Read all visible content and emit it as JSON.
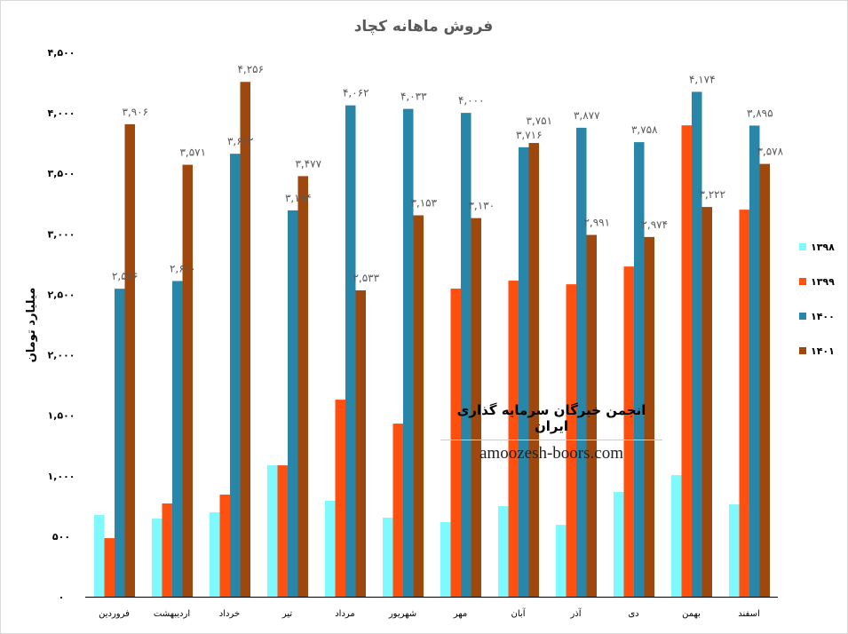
{
  "chart_data": {
    "type": "bar",
    "title": "فروش ماهانه کچاد",
    "ylabel": "میلیارد تومان",
    "xlabel": "",
    "ylim": [
      0,
      4500
    ],
    "yticks": [
      0,
      500,
      1000,
      1500,
      2000,
      2500,
      3000,
      3500,
      4000,
      4500
    ],
    "ytick_labels": [
      "۰",
      "۵۰۰",
      "۱,۰۰۰",
      "۱,۵۰۰",
      "۲,۰۰۰",
      "۲,۵۰۰",
      "۳,۰۰۰",
      "۳,۵۰۰",
      "۴,۰۰۰",
      "۴,۵۰۰"
    ],
    "grid": false,
    "legend_position": "right",
    "categories": [
      "فروردین",
      "اردیبهشت",
      "خرداد",
      "تیر",
      "مرداد",
      "شهریور",
      "مهر",
      "آبان",
      "آذر",
      "دی",
      "بهمن",
      "اسفند"
    ],
    "series": [
      {
        "name": "۱۳۹۸",
        "color": "#7ef9ff",
        "values": [
          675,
          646,
          697,
          1086,
          793,
          653,
          617,
          749,
          594,
          866,
          1005,
          763
        ],
        "labels": []
      },
      {
        "name": "۱۳۹۹",
        "color": "#ff5010",
        "values": [
          484,
          771,
          844,
          1086,
          1629,
          1431,
          2547,
          2613,
          2583,
          2730,
          3897,
          3200
        ],
        "labels": []
      },
      {
        "name": "۱۴۰۰",
        "color": "#2887a8",
        "values": [
          2546,
          2610,
          3662,
          3194,
          4062,
          4033,
          4000,
          3716,
          3877,
          3758,
          4174,
          3895
        ],
        "labels": [
          "۲,۵۴۶",
          "۲,۶۱۰",
          "۳,۶۶۲",
          "۳,۱۹۴",
          "۴,۰۶۲",
          "۴,۰۳۳",
          "۴,۰۰۰",
          "۳,۷۱۶",
          "۳,۸۷۷",
          "۳,۷۵۸",
          "۴,۱۷۴",
          "۳,۸۹۵"
        ]
      },
      {
        "name": "۱۴۰۱",
        "color": "#9e480e",
        "values": [
          3906,
          3571,
          4256,
          3477,
          2533,
          3153,
          3130,
          3751,
          2991,
          2974,
          3222,
          3578
        ],
        "labels": [
          "۳,۹۰۶",
          "۳,۵۷۱",
          "۴,۲۵۶",
          "۳,۴۷۷",
          "۲,۵۳۳",
          "۳,۱۵۳",
          "۳,۱۳۰",
          "۳,۷۵۱",
          "۲,۹۹۱",
          "۲,۹۷۴",
          "۳,۲۲۲",
          "۳,۵۷۸"
        ]
      }
    ]
  },
  "watermark": {
    "line1": "انجمن خبرگان سرمایه گذاری ایران",
    "line2": "amoozesh-boors.com"
  }
}
